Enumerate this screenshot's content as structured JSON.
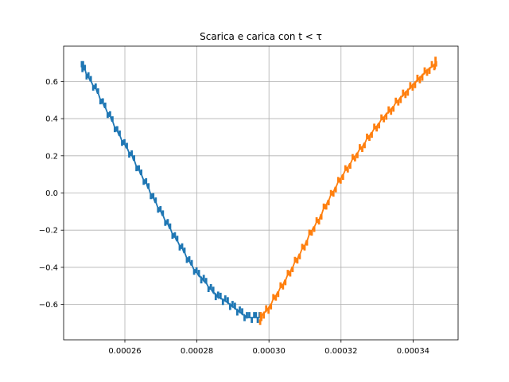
{
  "chart_data": {
    "type": "line",
    "title": "Scarica e carica con t < τ",
    "xlabel": "",
    "ylabel": "",
    "xlim": [
      0.000243,
      0.0003525
    ],
    "ylim": [
      -0.79,
      0.79
    ],
    "xticks": [
      0.00026,
      0.00028,
      0.0003,
      0.00032,
      0.00034
    ],
    "xtick_labels": [
      "0.00026",
      "0.00028",
      "0.00030",
      "0.00032",
      "0.00034"
    ],
    "yticks": [
      0.6,
      0.4,
      0.2,
      0.0,
      -0.2,
      -0.4,
      -0.6
    ],
    "ytick_labels": [
      "0.6",
      "0.4",
      "0.2",
      "0.0",
      "−0.2",
      "−0.4",
      "−0.6"
    ],
    "grid": true,
    "series": [
      {
        "color": "#1f77b4",
        "x": [
          0.000248,
          0.0002485,
          0.00025,
          0.000252,
          0.000254,
          0.000256,
          0.000258,
          0.00026,
          0.000262,
          0.000264,
          0.000266,
          0.000268,
          0.00027,
          0.000272,
          0.000274,
          0.000276,
          0.000278,
          0.00028,
          0.000282,
          0.000284,
          0.000286,
          0.000288,
          0.00029,
          0.000292,
          0.000294,
          0.000296,
          0.0002975
        ],
        "y": [
          0.68,
          0.68,
          0.62,
          0.56,
          0.48,
          0.41,
          0.33,
          0.26,
          0.2,
          0.12,
          0.05,
          -0.03,
          -0.1,
          -0.17,
          -0.24,
          -0.3,
          -0.37,
          -0.43,
          -0.47,
          -0.52,
          -0.56,
          -0.58,
          -0.61,
          -0.64,
          -0.67,
          -0.67,
          -0.67
        ]
      },
      {
        "color": "#ff7f0e",
        "x": [
          0.0002975,
          0.000298,
          0.0003,
          0.000302,
          0.000304,
          0.000306,
          0.000308,
          0.00031,
          0.000312,
          0.000314,
          0.000316,
          0.000318,
          0.00032,
          0.000322,
          0.000324,
          0.000326,
          0.000328,
          0.00033,
          0.000332,
          0.000334,
          0.000336,
          0.000338,
          0.00034,
          0.000342,
          0.000344,
          0.000346,
          0.0003465
        ],
        "y": [
          -0.69,
          -0.66,
          -0.62,
          -0.55,
          -0.49,
          -0.42,
          -0.35,
          -0.28,
          -0.2,
          -0.14,
          -0.06,
          0.01,
          0.08,
          0.14,
          0.2,
          0.25,
          0.31,
          0.36,
          0.41,
          0.45,
          0.5,
          0.54,
          0.58,
          0.62,
          0.66,
          0.69,
          0.71
        ]
      }
    ]
  }
}
